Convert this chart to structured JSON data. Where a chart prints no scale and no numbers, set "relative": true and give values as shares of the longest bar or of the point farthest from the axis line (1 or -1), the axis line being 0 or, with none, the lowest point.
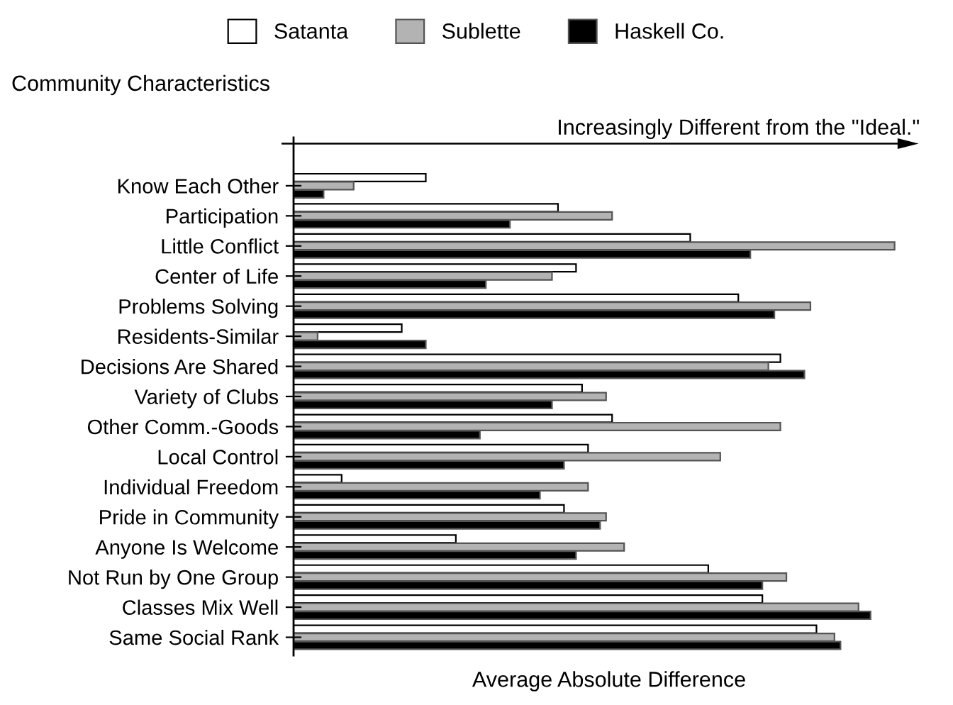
{
  "chart_data": {
    "type": "bar",
    "orientation": "horizontal",
    "relative": true,
    "ylabel": "Community Characteristics",
    "xlabel": "Average Absolute Difference",
    "annotations": [
      "Increasingly Different from the \"Ideal.\""
    ],
    "categories": [
      "Know Each Other",
      "Participation",
      "Little Conflict",
      "Center of Life",
      "Problems Solving",
      "Residents-Similar",
      "Decisions Are Shared",
      "Variety of Clubs",
      "Other Comm.-Goods",
      "Local Control",
      "Individual Freedom",
      "Pride in Community",
      "Anyone Is Welcome",
      "Not Run by One Group",
      "Classes Mix Well",
      "Same Social Rank"
    ],
    "series": [
      {
        "name": "Satanta",
        "color": "#ffffff",
        "values": [
          0.22,
          0.44,
          0.66,
          0.47,
          0.74,
          0.18,
          0.81,
          0.48,
          0.53,
          0.49,
          0.08,
          0.45,
          0.27,
          0.69,
          0.78,
          0.87
        ]
      },
      {
        "name": "Sublette",
        "color": "#b3b3b3",
        "values": [
          0.1,
          0.53,
          1.0,
          0.43,
          0.86,
          0.04,
          0.79,
          0.52,
          0.81,
          0.71,
          0.49,
          0.52,
          0.55,
          0.82,
          0.94,
          0.9
        ]
      },
      {
        "name": "Haskell Co.",
        "color": "#000000",
        "values": [
          0.05,
          0.36,
          0.76,
          0.32,
          0.8,
          0.22,
          0.85,
          0.43,
          0.31,
          0.45,
          0.41,
          0.51,
          0.47,
          0.78,
          0.96,
          0.91
        ]
      }
    ],
    "legend": "top",
    "grid": false
  }
}
